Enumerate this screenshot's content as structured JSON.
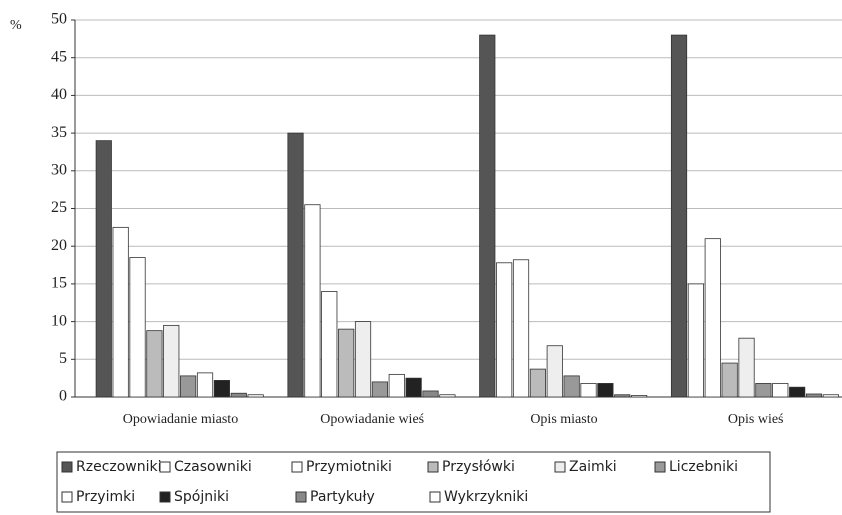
{
  "chart_data": {
    "type": "bar",
    "ylabel": "%",
    "categories": [
      "Opowiadanie miasto",
      "Opowiadanie wieś",
      "Opis miasto",
      "Opis wieś"
    ],
    "series": [
      {
        "name": "Rzeczowniki",
        "color": "#555555",
        "values": [
          34,
          35,
          48,
          48
        ]
      },
      {
        "name": "Czasowniki",
        "color": "#ffffff",
        "values": [
          22.5,
          25.5,
          17.8,
          15
        ]
      },
      {
        "name": "Przymiotniki",
        "color": "#ffffff",
        "values": [
          18.5,
          14,
          18.2,
          21
        ]
      },
      {
        "name": "Przysłówki",
        "color": "#bbbbbb",
        "values": [
          8.8,
          9,
          3.7,
          4.5
        ]
      },
      {
        "name": "Zaimki",
        "color": "#eeeeee",
        "values": [
          9.5,
          10,
          6.8,
          7.8
        ]
      },
      {
        "name": "Liczebniki",
        "color": "#999999",
        "values": [
          2.8,
          2,
          2.8,
          1.8
        ]
      },
      {
        "name": "Przyimki",
        "color": "#ffffff",
        "values": [
          3.2,
          3,
          1.8,
          1.8
        ]
      },
      {
        "name": "Spójniki",
        "color": "#222222",
        "values": [
          2.2,
          2.5,
          1.8,
          1.3
        ]
      },
      {
        "name": "Partykuły",
        "color": "#888888",
        "values": [
          0.5,
          0.8,
          0.3,
          0.4
        ]
      },
      {
        "name": "Wykrzykniki",
        "color": "#ffffff",
        "values": [
          0.3,
          0.3,
          0.2,
          0.3
        ]
      }
    ],
    "ylim": [
      0,
      50
    ],
    "yticks": [
      0,
      5,
      10,
      15,
      20,
      25,
      30,
      35,
      40,
      45,
      50
    ],
    "grid": true
  }
}
